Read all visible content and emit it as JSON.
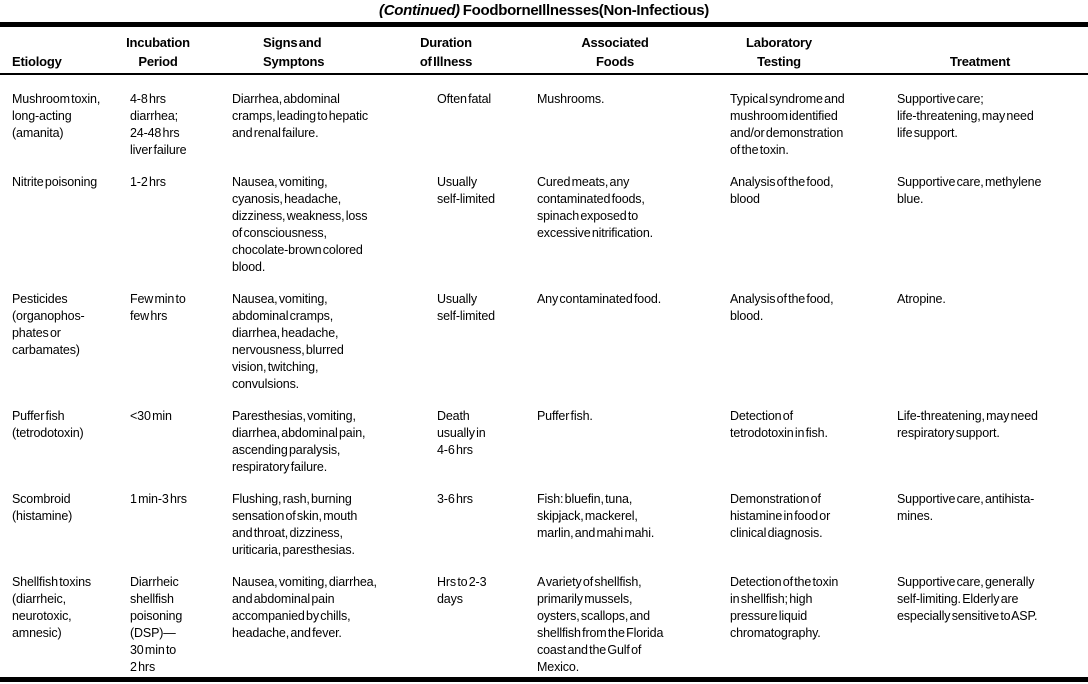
{
  "title": {
    "continued": "(Continued )",
    "main": "Foodborne Illnesses (Non-Infectious)"
  },
  "table": {
    "headers": {
      "etiology": "Etiology",
      "incubation": "Incubation\nPeriod",
      "signs": "Signs and\nSymptons",
      "duration": "Duration\nof Illness",
      "foods": "Associated\nFoods",
      "lab": "Laboratory\nTesting",
      "treatment": "Treatment"
    },
    "rows": [
      {
        "etiology": "Mushroom toxin,\nlong-acting\n(amanita)",
        "incubation": "4-8 hrs\ndiarrhea;\n24-48 hrs\nliver failure",
        "signs": "Diarrhea, abdominal\ncramps, leading to hepatic\nand renal failure.",
        "duration": "Often fatal",
        "foods": "Mushrooms.",
        "lab": "Typical syndrome and\nmushroom identified\nand/or demonstration\nof the toxin.",
        "treatment": "Supportive care;\nlife-threatening, may need\nlife support."
      },
      {
        "etiology": "Nitrite poisoning",
        "incubation": "1-2 hrs",
        "signs": "Nausea, vomiting,\ncyanosis, headache,\ndizziness, weakness, loss\nof consciousness,\nchocolate-brown colored\nblood.",
        "duration": "Usually\nself-limited",
        "foods": "Cured meats, any\ncontaminated foods,\nspinach exposed to\nexcessive nitrification.",
        "lab": "Analysis of the food,\nblood",
        "treatment": "Supportive care, methylene\nblue."
      },
      {
        "etiology": "Pesticides\n(organophos-\nphates or\ncarbamates)",
        "incubation": "Few min to\nfew hrs",
        "signs": "Nausea, vomiting,\nabdominal cramps,\ndiarrhea, headache,\nnervousness, blurred\nvision, twitching,\nconvulsions.",
        "duration": "Usually\nself-limited",
        "foods": "Any contaminated food.",
        "lab": "Analysis of the food,\nblood.",
        "treatment": "Atropine."
      },
      {
        "etiology": "Puffer fish\n(tetrodotoxin)",
        "incubation": "<30 min",
        "signs": "Paresthesias, vomiting,\ndiarrhea, abdominal pain,\nascending paralysis,\nrespiratory failure.",
        "duration": "Death\nusually in\n4-6 hrs",
        "foods": "Puffer fish.",
        "lab": "Detection of\ntetrodotoxin in fish.",
        "treatment": "Life-threatening, may need\nrespiratory support."
      },
      {
        "etiology": "Scombroid\n(histamine)",
        "incubation": "1 min-3 hrs",
        "signs": "Flushing, rash, burning\nsensation of skin, mouth\nand throat, dizziness,\nuriticaria, paresthesias.",
        "duration": "3-6 hrs",
        "foods": "Fish: bluefin, tuna,\nskipjack, mackerel,\nmarlin, and mahi mahi.",
        "lab": "Demonstration of\nhistamine in food or\nclinical diagnosis.",
        "treatment": "Supportive care, antihista-\nmines."
      },
      {
        "etiology": "Shellfish toxins\n(diarrheic,\nneurotoxic,\namnesic)",
        "incubation": "Diarrheic\nshellfish\npoisoning\n(DSP)—\n30 min to\n2 hrs",
        "signs": "Nausea, vomiting, diarrhea,\nand abdominal pain\naccompanied by chills,\nheadache, and fever.",
        "duration": "Hrs to 2-3\ndays",
        "foods": "A variety of shellfish,\nprimarily mussels,\noysters, scallops, and\nshellfish from the Florida\ncoast and the Gulf of\nMexico.",
        "lab": "Detection of the toxin\nin shellfish; high\npressure liquid\nchromatography.",
        "treatment": "Supportive care, generally\nself-limiting. Elderly are\nespecially sensitive to ASP."
      }
    ]
  }
}
